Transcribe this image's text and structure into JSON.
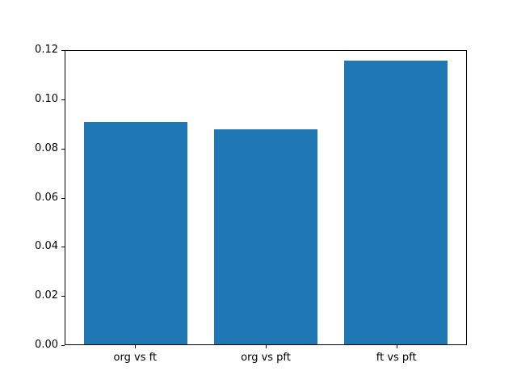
{
  "chart_data": {
    "type": "bar",
    "categories": [
      "org vs ft",
      "org vs pft",
      "ft vs pft"
    ],
    "values": [
      0.091,
      0.088,
      0.116
    ],
    "title": "",
    "xlabel": "",
    "ylabel": "",
    "ylim": [
      0,
      0.12
    ],
    "yticks": [
      0.0,
      0.02,
      0.04,
      0.06,
      0.08,
      0.1,
      0.12
    ],
    "ytick_labels": [
      "0.00",
      "0.02",
      "0.04",
      "0.06",
      "0.08",
      "0.10",
      "0.12"
    ],
    "bar_color": "#1f77b4",
    "bar_width_fraction": 0.8,
    "grid": false,
    "legend": null,
    "background_color": "#ffffff",
    "spine_color": "#000000"
  }
}
